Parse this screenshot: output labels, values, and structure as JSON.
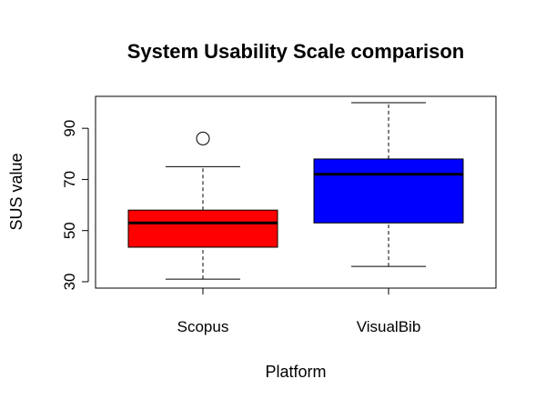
{
  "chart_data": {
    "type": "box",
    "title": "System Usability Scale comparison",
    "xlabel": "Platform",
    "ylabel": "SUS value",
    "ylim": [
      27.5,
      102.5
    ],
    "y_ticks": [
      30,
      50,
      70,
      90
    ],
    "categories": [
      "Scopus",
      "VisualBib"
    ],
    "boxes": [
      {
        "category": "Scopus",
        "whisker_low": 31,
        "q1": 43.5,
        "median": 53,
        "q3": 58,
        "whisker_high": 75,
        "outliers": [
          86
        ],
        "color": "#ff0000"
      },
      {
        "category": "VisualBib",
        "whisker_low": 36,
        "q1": 53,
        "median": 72,
        "q3": 78,
        "whisker_high": 100,
        "outliers": [],
        "color": "#0000ff"
      }
    ],
    "grid": false,
    "legend": "none"
  }
}
